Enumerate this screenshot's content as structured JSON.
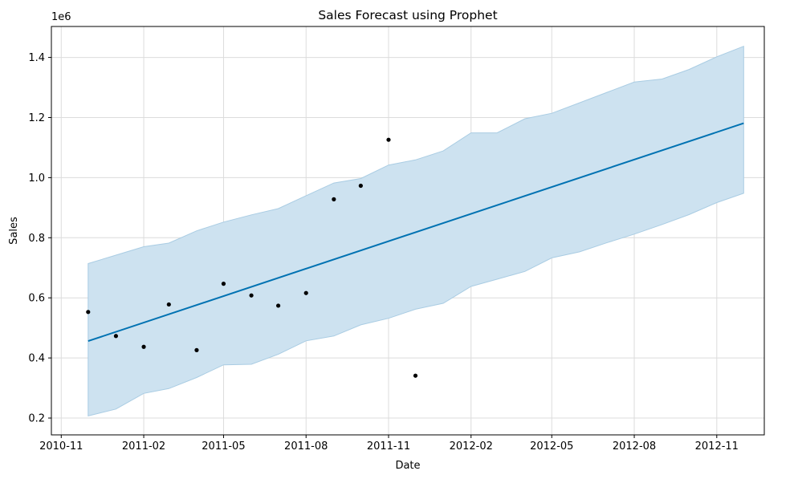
{
  "chart_data": {
    "type": "line",
    "title": "Sales Forecast using Prophet",
    "xlabel": "Date",
    "ylabel": "Sales",
    "y_offset_text": "1e6",
    "y_scale_factor": 1000000,
    "xlim": [
      "2010-10-21",
      "2012-12-24"
    ],
    "ylim": [
      0.144,
      1.503
    ],
    "grid": true,
    "x_ticks": [
      "2010-11-01",
      "2011-02-01",
      "2011-05-01",
      "2011-08-01",
      "2011-11-01",
      "2012-02-01",
      "2012-05-01",
      "2012-08-01",
      "2012-11-01"
    ],
    "x_tick_labels": [
      "2010-11",
      "2011-02",
      "2011-05",
      "2011-08",
      "2011-11",
      "2012-02",
      "2012-05",
      "2012-08",
      "2012-11"
    ],
    "y_ticks": [
      0.2,
      0.4,
      0.6,
      0.8,
      1.0,
      1.2,
      1.4
    ],
    "y_tick_labels": [
      "0.2",
      "0.4",
      "0.6",
      "0.8",
      "1.0",
      "1.2",
      "1.4"
    ],
    "colors": {
      "forecast_line": "#0072B2",
      "interval_fill": "#cde2f0",
      "interval_edge": "#a9cce3",
      "actual_points": "#000000",
      "grid": "#dcdcdc"
    },
    "series": [
      {
        "kind": "points",
        "dates": [
          "2010-12-01",
          "2011-01-01",
          "2011-02-01",
          "2011-03-01",
          "2011-04-01",
          "2011-05-01",
          "2011-06-01",
          "2011-07-01",
          "2011-08-01",
          "2011-09-01",
          "2011-10-01",
          "2011-11-01",
          "2011-12-01"
        ],
        "values": [
          0.553,
          0.473,
          0.437,
          0.578,
          0.426,
          0.647,
          0.608,
          0.574,
          0.616,
          0.928,
          0.973,
          1.126,
          0.341
        ]
      },
      {
        "kind": "forecast",
        "dates": [
          "2010-12-01",
          "2012-12-01"
        ],
        "values": [
          0.456,
          1.181
        ]
      },
      {
        "kind": "interval",
        "dates": [
          "2010-12-01",
          "2011-01-01",
          "2011-02-01",
          "2011-03-01",
          "2011-04-01",
          "2011-05-01",
          "2011-06-01",
          "2011-07-01",
          "2011-08-01",
          "2011-09-01",
          "2011-10-01",
          "2011-11-01",
          "2011-12-01",
          "2012-01-01",
          "2012-02-01",
          "2012-03-01",
          "2012-04-01",
          "2012-05-01",
          "2012-06-01",
          "2012-07-01",
          "2012-08-01",
          "2012-09-01",
          "2012-10-01",
          "2012-11-01",
          "2012-12-01"
        ],
        "upper": [
          0.714,
          0.742,
          0.77,
          0.782,
          0.823,
          0.852,
          0.876,
          0.897,
          0.94,
          0.982,
          0.997,
          1.042,
          1.059,
          1.089,
          1.149,
          1.149,
          1.196,
          1.214,
          1.249,
          1.283,
          1.318,
          1.328,
          1.36,
          1.402,
          1.437
        ],
        "lower": [
          0.207,
          0.23,
          0.282,
          0.298,
          0.335,
          0.377,
          0.379,
          0.412,
          0.457,
          0.473,
          0.51,
          0.532,
          0.562,
          0.582,
          0.638,
          0.662,
          0.688,
          0.733,
          0.753,
          0.783,
          0.812,
          0.844,
          0.877,
          0.917,
          0.948
        ]
      }
    ]
  }
}
